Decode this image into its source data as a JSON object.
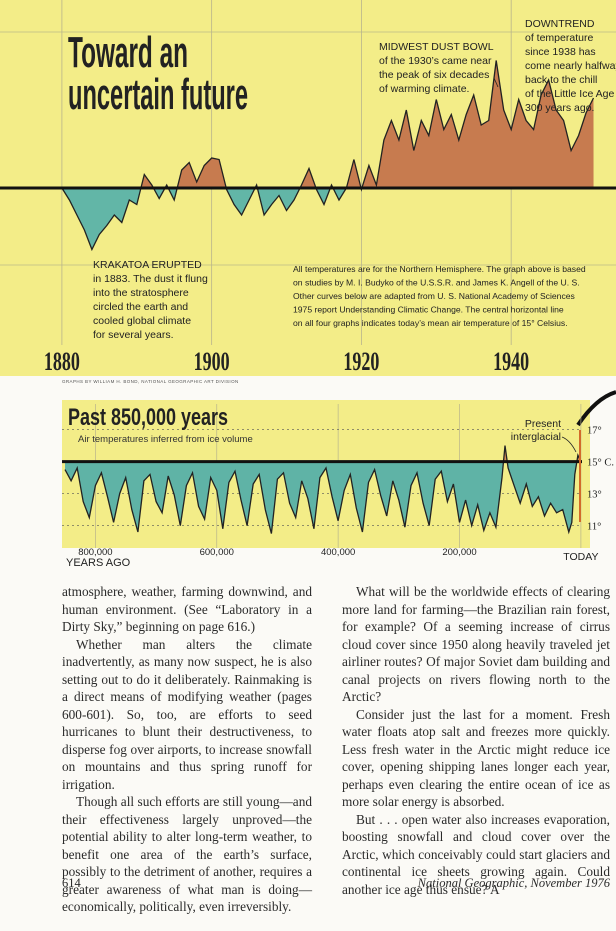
{
  "chart_data": [
    {
      "type": "area",
      "title": [
        "Toward an",
        "uncertain future"
      ],
      "x": [
        1880,
        1881,
        1882,
        1883,
        1884,
        1885,
        1886,
        1887,
        1888,
        1889,
        1890,
        1891,
        1892,
        1893,
        1894,
        1895,
        1896,
        1897,
        1898,
        1899,
        1900,
        1901,
        1902,
        1903,
        1904,
        1905,
        1906,
        1907,
        1908,
        1909,
        1910,
        1911,
        1912,
        1913,
        1914,
        1915,
        1916,
        1917,
        1918,
        1919,
        1920,
        1921,
        1922,
        1923,
        1924,
        1925,
        1926,
        1927,
        1928,
        1929,
        1930,
        1931,
        1932,
        1933,
        1934,
        1935,
        1936,
        1937,
        1938,
        1939,
        1940,
        1941,
        1942,
        1943,
        1944,
        1945,
        1946,
        1947,
        1948,
        1949,
        1950,
        1951
      ],
      "values": [
        0,
        -0.08,
        -0.18,
        -0.28,
        -0.41,
        -0.31,
        -0.25,
        -0.18,
        -0.23,
        -0.08,
        -0.11,
        0.09,
        0.02,
        -0.07,
        0.02,
        -0.08,
        0.12,
        0.17,
        0.04,
        0.15,
        0.2,
        0.19,
        -0.01,
        -0.11,
        -0.18,
        -0.08,
        0.02,
        -0.18,
        -0.11,
        -0.05,
        -0.15,
        -0.08,
        0.02,
        0.13,
        -0.01,
        -0.11,
        0.02,
        -0.08,
        0,
        0.19,
        -0.01,
        0.15,
        0.02,
        0.32,
        0.45,
        0.32,
        0.52,
        0.25,
        0.45,
        0.35,
        0.59,
        0.39,
        0.49,
        0.32,
        0.49,
        0.62,
        0.42,
        0.45,
        0.85,
        0.52,
        0.39,
        0.59,
        0.45,
        0.39,
        0.62,
        0.72,
        0.52,
        0.45,
        0.25,
        0.35,
        0.5,
        0.6
      ],
      "colors": {
        "above": "#c77b4f",
        "below": "#62b6a7"
      },
      "xlim": [
        1872,
        1954
      ],
      "ylim": [
        -1.2,
        1.2
      ],
      "xticks": [
        1880,
        1900,
        1920,
        1940
      ],
      "annotations": [
        {
          "heading": "MIDWEST DUST BOWL",
          "lines": [
            "of the 1930’s came near",
            "the peak of six decades",
            "of warming climate."
          ]
        },
        {
          "heading": "DOWNTREND",
          "lines": [
            "of temperature",
            "since 1938 has",
            "come nearly halfway",
            "back to the chill",
            "of the Little Ice Age",
            "300 years ago."
          ]
        },
        {
          "heading": "KRAKATOA ERUPTED",
          "lines": [
            "in 1883. The dust it flung",
            "into the stratosphere",
            "circled the earth and",
            "cooled global climate",
            "for several years."
          ]
        }
      ],
      "note": [
        "All temperatures are for the Northern Hemisphere. The graph above is based",
        "on studies by M. I. Budyko of the U.S.S.R. and James K. Angell of the U. S.",
        "Other curves below are adapted from U. S. National Academy of Sciences",
        "1975 report Understanding Climatic Change. The central horizontal line",
        "on all four graphs indicates today’s mean air temperature of 15° Celsius."
      ]
    },
    {
      "type": "area",
      "title": "Past 850,000 years",
      "subtitle": "Air temperatures inferred from ice volume",
      "x_label": "YEARS AGO",
      "annotation": [
        "Present",
        "interglacial"
      ],
      "x": [
        850000,
        840000,
        830000,
        820000,
        810000,
        800000,
        790000,
        780000,
        770000,
        760000,
        750000,
        740000,
        730000,
        720000,
        710000,
        700000,
        690000,
        680000,
        670000,
        660000,
        650000,
        640000,
        630000,
        620000,
        610000,
        600000,
        590000,
        580000,
        570000,
        560000,
        550000,
        540000,
        530000,
        520000,
        510000,
        500000,
        490000,
        480000,
        470000,
        460000,
        450000,
        440000,
        430000,
        420000,
        410000,
        400000,
        390000,
        380000,
        370000,
        360000,
        350000,
        340000,
        330000,
        320000,
        310000,
        300000,
        290000,
        280000,
        270000,
        260000,
        250000,
        240000,
        230000,
        220000,
        210000,
        200000,
        190000,
        180000,
        170000,
        160000,
        150000,
        140000,
        130000,
        125000,
        120000,
        110000,
        100000,
        90000,
        80000,
        70000,
        60000,
        50000,
        40000,
        30000,
        20000,
        15000,
        10000,
        5000,
        0
      ],
      "values": [
        14.5,
        13.8,
        14.6,
        12.5,
        11.5,
        13.5,
        14.3,
        12.8,
        11.2,
        13.0,
        14.0,
        12.0,
        10.6,
        13.8,
        14.2,
        12.5,
        11.8,
        14.1,
        12.9,
        11.0,
        13.5,
        14.3,
        12.2,
        11.4,
        14.0,
        13.2,
        10.8,
        13.7,
        14.4,
        12.6,
        11.0,
        13.6,
        14.2,
        12.0,
        10.5,
        13.9,
        14.3,
        12.4,
        11.5,
        13.8,
        12.7,
        10.8,
        14.0,
        14.6,
        12.8,
        11.3,
        13.2,
        14.2,
        12.1,
        10.6,
        13.7,
        14.5,
        12.9,
        11.6,
        13.8,
        12.6,
        10.9,
        13.5,
        14.3,
        12.4,
        11.0,
        13.9,
        14.4,
        12.5,
        13.6,
        11.2,
        12.6,
        11.0,
        12.3,
        10.7,
        11.8,
        10.9,
        14.0,
        16.0,
        14.6,
        13.5,
        12.4,
        13.6,
        12.2,
        12.8,
        11.6,
        12.4,
        11.8,
        12.0,
        10.6,
        11.2,
        14.2,
        15.4,
        15.0
      ],
      "colors": {
        "above": "#d48a52",
        "below": "#5fb3a6"
      },
      "baseline": 15,
      "xlim": [
        855000,
        -15000
      ],
      "ylim": [
        9.6,
        18.6
      ],
      "xticks": [
        {
          "value": 800000,
          "label": "800,000"
        },
        {
          "value": 600000,
          "label": "600,000"
        },
        {
          "value": 400000,
          "label": "400,000"
        },
        {
          "value": 200000,
          "label": "200,000"
        },
        {
          "value": 0,
          "label": "TODAY"
        }
      ],
      "yticks": [
        {
          "value": 17,
          "label": "17°"
        },
        {
          "value": 15,
          "label": "15° C."
        },
        {
          "value": 13,
          "label": "13°"
        },
        {
          "value": 11,
          "label": "11°"
        }
      ]
    }
  ],
  "credit": "GRAPHS BY WILLIAM H. BOND, NATIONAL GEOGRAPHIC ART DIVISION",
  "article": {
    "left": [
      "atmosphere, weather, farming downwind, and human environment. (See “Laboratory in a Dirty Sky,” beginning on page 616.)",
      "Whether man alters the climate inadvertently, as many now suspect, he is also setting out to do it deliberately. Rainmaking is a direct means of modifying weather (pages 600-601). So, too, are efforts to seed hurricanes to blunt their destructiveness, to disperse fog over airports, to increase snowfall on mountains and thus spring runoff for irrigation.",
      "Though all such efforts are still young—and their effectiveness largely unproved—the potential ability to alter long-term weather, to benefit one area of the earth’s surface, possibly to the detriment of another, requires a greater awareness of what man is doing—economically, politically, even irreversibly."
    ],
    "right": [
      "What will be the worldwide effects of clearing more land for farming—the Brazilian rain forest, for example? Of a seeming increase of cirrus cloud cover since 1950 along heavily traveled jet airliner routes? Of major Soviet dam building and canal projects on rivers flowing north to the Arctic?",
      "Consider just the last for a moment. Fresh water floats atop salt and freezes more quickly. Less fresh water in the Arctic might reduce ice cover, opening shipping lanes longer each year, perhaps even clearing the entire ocean of ice as more solar energy is absorbed.",
      "But . . . open water also increases evaporation, boosting snowfall and cloud cover over the Arctic, which conceivably could start glaciers and continental ice sheets growing again. Could another ice age thus ensue? A"
    ]
  },
  "footer": {
    "page": "614",
    "source": "National Geographic, November 1976"
  }
}
